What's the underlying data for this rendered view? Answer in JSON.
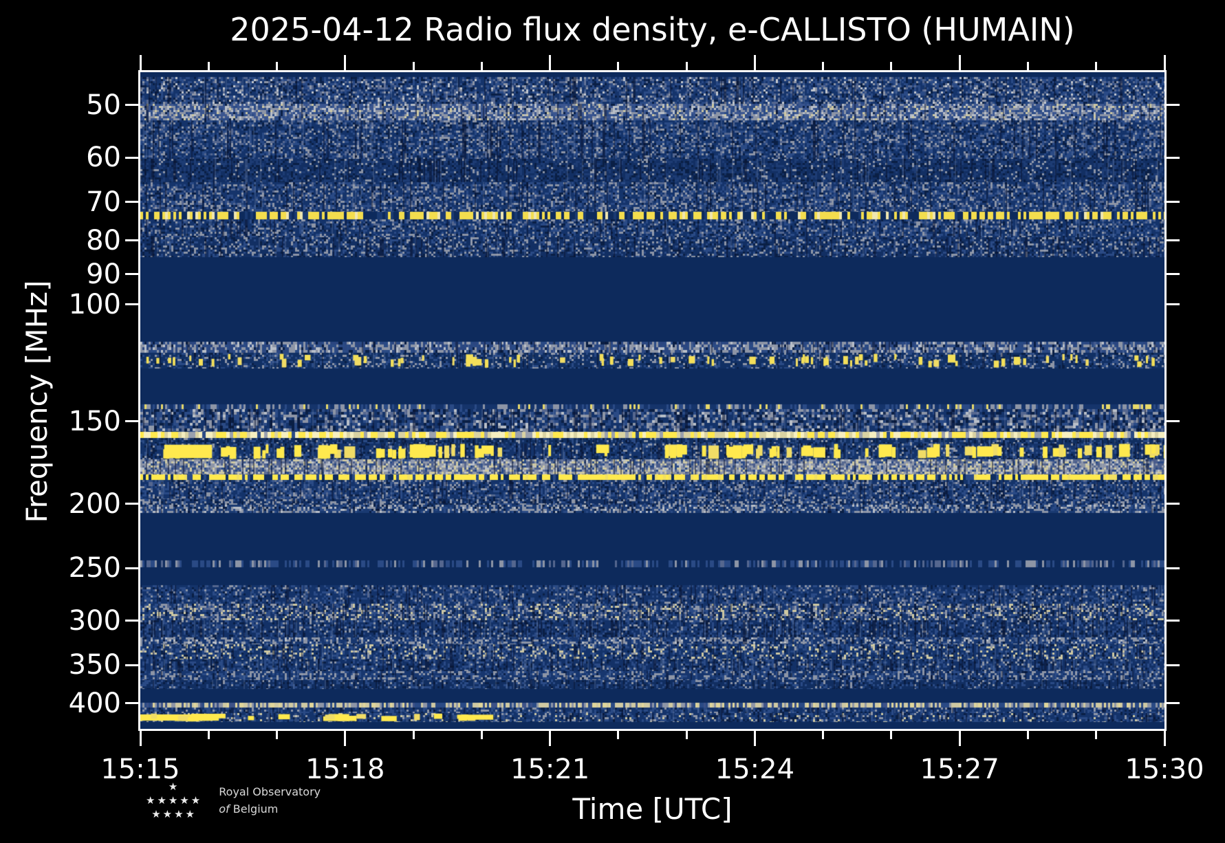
{
  "chart_data": {
    "type": "heatmap",
    "subtype": "radio-spectrogram",
    "title": "2025-04-12 Radio flux density, e-CALLISTO (HUMAIN)",
    "xlabel": "Time [UTC]",
    "ylabel": "Frequency [MHz]",
    "x_axis": {
      "start": "15:15",
      "end": "15:30",
      "major_ticks": [
        "15:15",
        "15:18",
        "15:21",
        "15:24",
        "15:27",
        "15:30"
      ],
      "major_tick_interval_minutes": 3,
      "minor_tick_interval_minutes": 1,
      "total_minutes": 15
    },
    "y_axis": {
      "scale": "log",
      "direction": "increasing-downward",
      "ticks_mhz": [
        50,
        60,
        70,
        80,
        90,
        100,
        150,
        200,
        250,
        300,
        350,
        400
      ],
      "range_mhz": [
        44.6,
        437
      ]
    },
    "colors": {
      "figure_bg": "#000000",
      "axis": "#ffffff",
      "quiet": "#0d2a5c",
      "noise_blue": "#2a4a85",
      "speckle_gray": "#8d95a6",
      "speckle_tan": "#cfc9a2",
      "rfi_yellow": "#ffe94e"
    },
    "features": [
      {
        "freq_mhz": 73.5,
        "desc": "intermittent yellow RFI line across all times"
      },
      {
        "freq_mhz": 121,
        "desc": "aircraft-band yellow bursts 118-125 MHz"
      },
      {
        "freq_mhz": 157,
        "desc": "bright near-continuous carrier line"
      },
      {
        "freq_mhz": 166,
        "desc": "strong saturated RFI bursts 162-171 MHz, large blob near 15:15.5"
      },
      {
        "freq_mhz": 182,
        "desc": "bright intermittent yellow carrier"
      },
      {
        "freq_mhz": 402,
        "desc": "tan speckled carrier line across all times"
      },
      {
        "freq_mhz": 420,
        "desc": "strong saturated yellow emission from 15:15 until about 15:20"
      }
    ],
    "quiet_bands_mhz": [
      [
        85,
        114
      ],
      [
        125,
        141
      ],
      [
        206,
        244
      ],
      [
        249,
        266
      ],
      [
        381,
        399
      ]
    ],
    "bands": [
      {
        "f": [
          44.6,
          45.4
        ],
        "style": "quiet"
      },
      {
        "f": [
          45.4,
          49.8
        ],
        "style": "tex",
        "base": "#15346b",
        "cell": [
          3,
          3
        ],
        "pal": [
          [
            "#2a4a85",
            0.24
          ],
          [
            "#55678f",
            0.12
          ],
          [
            "#8d95a6",
            0.1
          ],
          [
            "#c3c7ce",
            0.04
          ],
          [
            "#0a1f45",
            0.12
          ]
        ],
        "stripes": 0.07
      },
      {
        "f": [
          49.8,
          52.7
        ],
        "style": "tex",
        "base": "#3a558f",
        "cell": [
          3,
          3
        ],
        "pal": [
          [
            "#8d95a6",
            0.28
          ],
          [
            "#b9bfc8",
            0.12
          ],
          [
            "#cfc9a2",
            0.05
          ],
          [
            "#2a4a85",
            0.2
          ],
          [
            "#0a1f45",
            0.05
          ]
        ],
        "stripes": 0.05
      },
      {
        "f": [
          52.7,
          60.2
        ],
        "style": "tex",
        "base": "#14336a",
        "cell": [
          3,
          3
        ],
        "pal": [
          [
            "#2a4a85",
            0.22
          ],
          [
            "#55678f",
            0.11
          ],
          [
            "#8d95a6",
            0.11
          ],
          [
            "#0a1f45",
            0.13
          ]
        ],
        "stripes": 0.08
      },
      {
        "f": [
          60.2,
          65.4
        ],
        "style": "tex",
        "base": "#122f63",
        "cell": [
          3,
          3
        ],
        "pal": [
          [
            "#1d3c74",
            0.3
          ],
          [
            "#8d95a6",
            0.07
          ],
          [
            "#0a1f45",
            0.2
          ]
        ],
        "stripes": 0.08
      },
      {
        "f": [
          65.4,
          72.5
        ],
        "style": "tex",
        "base": "#15346b",
        "cell": [
          3,
          3
        ],
        "pal": [
          [
            "#8d95a6",
            0.15
          ],
          [
            "#2a4a85",
            0.22
          ],
          [
            "#55678f",
            0.1
          ],
          [
            "#0a1f45",
            0.1
          ]
        ],
        "stripes": 0.08
      },
      {
        "f": [
          72.5,
          74.3
        ],
        "style": "tex",
        "base": "#0d2a5c",
        "cell": [
          4,
          0
        ],
        "pal": [
          [
            "#f3dd4e",
            0.52
          ],
          [
            "#efe6b0",
            0.08
          ],
          [
            "#1a3a72",
            0.12
          ]
        ],
        "stripes": 0
      },
      {
        "f": [
          74.3,
          79.1
        ],
        "style": "tex",
        "base": "#14336a",
        "cell": [
          3,
          3
        ],
        "pal": [
          [
            "#2a4a85",
            0.22
          ],
          [
            "#8d95a6",
            0.12
          ],
          [
            "#55678f",
            0.08
          ],
          [
            "#0a1f45",
            0.12
          ]
        ],
        "stripes": 0.08
      },
      {
        "f": [
          79.1,
          84.9
        ],
        "style": "tex",
        "base": "#122f63",
        "cell": [
          3,
          3
        ],
        "pal": [
          [
            "#2a4a85",
            0.2
          ],
          [
            "#8d95a6",
            0.16
          ],
          [
            "#0a1f45",
            0.14
          ]
        ],
        "stripes": 0.08
      },
      {
        "f": [
          84.9,
          113.7
        ],
        "style": "quiet"
      },
      {
        "f": [
          113.7,
          118.2
        ],
        "style": "tex",
        "base": "#2b4680",
        "cell": [
          3,
          4
        ],
        "pal": [
          [
            "#8d95a6",
            0.3
          ],
          [
            "#b9bfc8",
            0.12
          ],
          [
            "#2a4a85",
            0.25
          ],
          [
            "#0a1f45",
            0.08
          ]
        ],
        "stripes": 0.06
      },
      {
        "f": [
          118.2,
          124.9
        ],
        "style": "blobs",
        "base": "#113064",
        "cell": [
          3,
          3
        ],
        "pal": [
          [
            "#2a4a85",
            0.2
          ],
          [
            "#8d95a6",
            0.12
          ],
          [
            "#0a1f45",
            0.08
          ]
        ],
        "stripes": 0.05,
        "blobs": {
          "n": 80,
          "w": [
            3,
            13
          ],
          "tmax": 15,
          "hfrac": 0.55,
          "color": "#f3df5a",
          "runs": []
        }
      },
      {
        "f": [
          124.9,
          141.5
        ],
        "style": "quiet"
      },
      {
        "f": [
          141.5,
          143.9
        ],
        "style": "tex",
        "base": "#15346b",
        "cell": [
          3,
          0
        ],
        "pal": [
          [
            "#8d95a6",
            0.2
          ],
          [
            "#e8d96a",
            0.07
          ],
          [
            "#2a4a85",
            0.25
          ]
        ],
        "stripes": 0
      },
      {
        "f": [
          143.9,
          155.8
        ],
        "style": "tex",
        "base": "#14336a",
        "cell": [
          4,
          4
        ],
        "pal": [
          [
            "#2a4a85",
            0.22
          ],
          [
            "#8d95a6",
            0.16
          ],
          [
            "#b9bfc8",
            0.05
          ],
          [
            "#55678f",
            0.1
          ],
          [
            "#0a1f45",
            0.16
          ]
        ],
        "stripes": 0.12
      },
      {
        "f": [
          155.8,
          159.2
        ],
        "style": "tex",
        "base": "#d9d2a2",
        "cell": [
          5,
          0
        ],
        "pal": [
          [
            "#ffe94e",
            0.4
          ],
          [
            "#f6efc0",
            0.25
          ],
          [
            "#99a0ae",
            0.08
          ],
          [
            "#2a4a85",
            0.04
          ]
        ],
        "stripes": 0
      },
      {
        "f": [
          159.2,
          162.2
        ],
        "style": "tex",
        "base": "#102e60",
        "cell": [
          3,
          3
        ],
        "pal": [
          [
            "#2a4a85",
            0.25
          ],
          [
            "#0a1f45",
            0.15
          ],
          [
            "#8d95a6",
            0.06
          ]
        ],
        "stripes": 0.08
      },
      {
        "f": [
          162.2,
          171.4
        ],
        "style": "blobs",
        "base": "#14336a",
        "cell": [
          3,
          3
        ],
        "pal": [
          [
            "#2a4a85",
            0.2
          ],
          [
            "#8d95a6",
            0.1
          ],
          [
            "#0a1f45",
            0.15
          ]
        ],
        "stripes": 0.1,
        "blobs": {
          "n": 95,
          "w": [
            4,
            26
          ],
          "tmax": 15,
          "hfrac": 0.85,
          "color": "#ffe94e",
          "runs": [
            [
              0.35,
              1.05
            ]
          ]
        }
      },
      {
        "f": [
          171.4,
          180.6
        ],
        "style": "tex",
        "base": "#4a5d8c",
        "cell": [
          3,
          3
        ],
        "pal": [
          [
            "#8d95a6",
            0.28
          ],
          [
            "#cfc9a2",
            0.15
          ],
          [
            "#b9bfc8",
            0.14
          ],
          [
            "#2a4a85",
            0.15
          ],
          [
            "#55678f",
            0.14
          ]
        ],
        "stripes": 0.12
      },
      {
        "f": [
          180.6,
          184.0
        ],
        "style": "tex",
        "base": "#0f2d5f",
        "cell": [
          4,
          0
        ],
        "pal": [
          [
            "#ffe94e",
            0.62
          ],
          [
            "#f1df62",
            0.1
          ],
          [
            "#2a4a85",
            0.1
          ]
        ],
        "stripes": 0
      },
      {
        "f": [
          184.0,
          196.9
        ],
        "style": "tex",
        "base": "#14336a",
        "cell": [
          3,
          3
        ],
        "pal": [
          [
            "#2a4a85",
            0.25
          ],
          [
            "#8d95a6",
            0.12
          ],
          [
            "#55678f",
            0.08
          ],
          [
            "#0a1f45",
            0.12
          ]
        ],
        "stripes": 0.09
      },
      {
        "f": [
          196.9,
          200.6
        ],
        "style": "tex",
        "base": "#122f63",
        "cell": [
          3,
          3
        ],
        "pal": [
          [
            "#8d95a6",
            0.25
          ],
          [
            "#2a4a85",
            0.2
          ],
          [
            "#0a1f45",
            0.1
          ]
        ],
        "stripes": 0.06
      },
      {
        "f": [
          200.6,
          206.3
        ],
        "style": "tex",
        "base": "#1a3a72",
        "cell": [
          3,
          3
        ],
        "pal": [
          [
            "#8d95a6",
            0.3
          ],
          [
            "#b9bfc8",
            0.08
          ],
          [
            "#2a4a85",
            0.2
          ],
          [
            "#0a1f45",
            0.08
          ]
        ],
        "stripes": 0.06
      },
      {
        "f": [
          206.3,
          243.5
        ],
        "style": "quiet"
      },
      {
        "f": [
          243.5,
          249.3
        ],
        "style": "tex",
        "base": "#0d2a5c",
        "cell": [
          3,
          0
        ],
        "pal": [
          [
            "#2a4a85",
            0.3
          ],
          [
            "#8d95a6",
            0.14
          ],
          [
            "#55678f",
            0.1
          ]
        ],
        "stripes": 0
      },
      {
        "f": [
          249.3,
          265.5
        ],
        "style": "quiet"
      },
      {
        "f": [
          265.5,
          283.1
        ],
        "style": "tex",
        "base": "#14336a",
        "cell": [
          3,
          3
        ],
        "pal": [
          [
            "#2a4a85",
            0.22
          ],
          [
            "#8d95a6",
            0.1
          ],
          [
            "#55678f",
            0.06
          ],
          [
            "#0a1f45",
            0.1
          ]
        ],
        "stripes": 0.08
      },
      {
        "f": [
          283.1,
          299.8
        ],
        "style": "tex",
        "base": "#15346b",
        "cell": [
          3,
          3
        ],
        "pal": [
          [
            "#8d95a6",
            0.18
          ],
          [
            "#cfc9a2",
            0.1
          ],
          [
            "#2a4a85",
            0.2
          ],
          [
            "#55678f",
            0.1
          ],
          [
            "#0a1f45",
            0.1
          ]
        ],
        "stripes": 0.1
      },
      {
        "f": [
          299.8,
          318.0
        ],
        "style": "tex",
        "base": "#133167",
        "cell": [
          3,
          3
        ],
        "pal": [
          [
            "#2a4a85",
            0.28
          ],
          [
            "#0a1f45",
            0.15
          ],
          [
            "#8d95a6",
            0.08
          ]
        ],
        "stripes": 0.13
      },
      {
        "f": [
          318.0,
          325.6
        ],
        "style": "tex",
        "base": "#17366e",
        "cell": [
          3,
          3
        ],
        "pal": [
          [
            "#8d95a6",
            0.28
          ],
          [
            "#b9bfc8",
            0.06
          ],
          [
            "#2a4a85",
            0.2
          ],
          [
            "#0a1f45",
            0.06
          ]
        ],
        "stripes": 0.06
      },
      {
        "f": [
          325.6,
          343.5
        ],
        "style": "tex",
        "base": "#14336a",
        "cell": [
          3,
          3
        ],
        "pal": [
          [
            "#cfc9a2",
            0.1
          ],
          [
            "#8d95a6",
            0.1
          ],
          [
            "#2a4a85",
            0.25
          ],
          [
            "#0a1f45",
            0.1
          ]
        ],
        "stripes": 0.1
      },
      {
        "f": [
          343.5,
          357.3
        ],
        "style": "tex",
        "base": "#133167",
        "cell": [
          3,
          3
        ],
        "pal": [
          [
            "#2a4a85",
            0.28
          ],
          [
            "#0a1f45",
            0.14
          ],
          [
            "#8d95a6",
            0.08
          ]
        ],
        "stripes": 0.13
      },
      {
        "f": [
          357.3,
          368.4
        ],
        "style": "tex",
        "base": "#17366e",
        "cell": [
          3,
          3
        ],
        "pal": [
          [
            "#8d95a6",
            0.26
          ],
          [
            "#2a4a85",
            0.22
          ],
          [
            "#0a1f45",
            0.08
          ]
        ],
        "stripes": 0.06
      },
      {
        "f": [
          368.4,
          380.6
        ],
        "style": "tex",
        "base": "#112e61",
        "cell": [
          3,
          3
        ],
        "pal": [
          [
            "#2a4a85",
            0.22
          ],
          [
            "#8d95a6",
            0.06
          ],
          [
            "#0a1f45",
            0.1
          ]
        ],
        "stripes": 0.08
      },
      {
        "f": [
          380.6,
          398.6
        ],
        "style": "quiet"
      },
      {
        "f": [
          398.6,
          406.1
        ],
        "style": "tex",
        "base": "#3d5288",
        "cell": [
          3,
          0
        ],
        "pal": [
          [
            "#cfc9a2",
            0.3
          ],
          [
            "#e0d69a",
            0.15
          ],
          [
            "#8d95a6",
            0.2
          ],
          [
            "#2a4a85",
            0.2
          ]
        ],
        "stripes": 0
      },
      {
        "f": [
          406.1,
          413.7
        ],
        "style": "tex",
        "base": "#14336a",
        "cell": [
          3,
          3
        ],
        "pal": [
          [
            "#2a4a85",
            0.25
          ],
          [
            "#8d95a6",
            0.12
          ],
          [
            "#0a1f45",
            0.1
          ]
        ],
        "stripes": 0.08
      },
      {
        "f": [
          413.7,
          426.5
        ],
        "style": "blobs",
        "base": "#14336a",
        "cell": [
          3,
          3
        ],
        "pal": [
          [
            "#2a4a85",
            0.22
          ],
          [
            "#8d95a6",
            0.12
          ],
          [
            "#cfc9a2",
            0.05
          ],
          [
            "#0a1f45",
            0.1
          ]
        ],
        "stripes": 0.08,
        "blobs": {
          "n": 26,
          "w": [
            8,
            60
          ],
          "tmax": 5.3,
          "hfrac": 0.7,
          "color": "#ffe94e",
          "runs": [
            [
              0.0,
              1.15
            ]
          ]
        }
      },
      {
        "f": [
          426.5,
          437.0
        ],
        "style": "quiet"
      }
    ]
  },
  "logo": {
    "stars_rows": [
      "★",
      "★★★★★",
      "★★★★"
    ],
    "line1": "Royal Observatory",
    "line2_italic": "of",
    "line2": "Belgium"
  }
}
